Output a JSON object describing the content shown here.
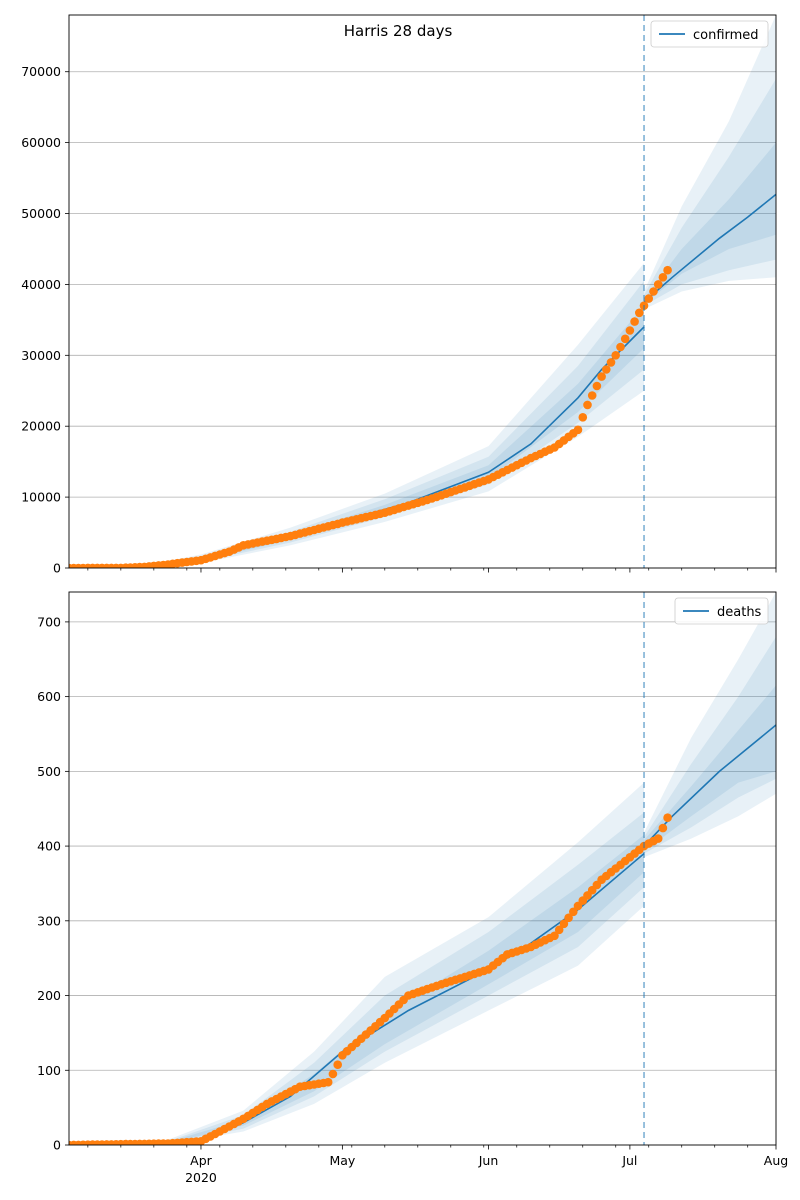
{
  "figure": {
    "title": "Harris 28 days"
  },
  "colors": {
    "model_line": "#1f77b4",
    "band": "#1f77b4",
    "observed": "#ff7f0e",
    "grid": "#b0b0b0",
    "vline": "#1f77b4"
  },
  "x_axis": {
    "date_start": "2020-03-04",
    "date_end": "2020-08-01",
    "tick_labels": [
      {
        "date": "2020-04-01",
        "label": "Apr",
        "sublabel": "2020"
      },
      {
        "date": "2020-05-01",
        "label": "May",
        "sublabel": ""
      },
      {
        "date": "2020-06-01",
        "label": "Jun",
        "sublabel": ""
      },
      {
        "date": "2020-07-01",
        "label": "Jul",
        "sublabel": ""
      },
      {
        "date": "2020-08-01",
        "label": "Aug",
        "sublabel": ""
      }
    ],
    "forecast_start_date": "2020-07-04"
  },
  "chart_data": [
    {
      "type": "line",
      "title": "Harris 28 days",
      "legend": "top-right",
      "grid": "y",
      "ylim": [
        0,
        78000
      ],
      "yticks": [
        0,
        10000,
        20000,
        30000,
        40000,
        50000,
        60000,
        70000
      ],
      "series": [
        {
          "name": "confirmed",
          "kind": "model",
          "points": [
            [
              "2020-03-04",
              0
            ],
            [
              "2020-03-20",
              200
            ],
            [
              "2020-03-25",
              500
            ],
            [
              "2020-04-01",
              1200
            ],
            [
              "2020-04-10",
              2800
            ],
            [
              "2020-04-20",
              4300
            ],
            [
              "2020-05-01",
              6600
            ],
            [
              "2020-05-15",
              9200
            ],
            [
              "2020-06-01",
              13500
            ],
            [
              "2020-06-10",
              17500
            ],
            [
              "2020-06-20",
              24000
            ],
            [
              "2020-06-25",
              28000
            ],
            [
              "2020-07-04",
              34000
            ]
          ],
          "band_points": [
            [
              "2020-03-04",
              0,
              0,
              0,
              0,
              0,
              0
            ],
            [
              "2020-03-20",
              100,
              150,
              180,
              230,
              280,
              350
            ],
            [
              "2020-04-01",
              700,
              900,
              1050,
              1350,
              1550,
              1900
            ],
            [
              "2020-04-20",
              3200,
              3600,
              3950,
              4700,
              5100,
              5700
            ],
            [
              "2020-05-10",
              6500,
              7200,
              7700,
              8900,
              9700,
              10500
            ],
            [
              "2020-06-01",
              10800,
              11800,
              12600,
              14500,
              15700,
              17200
            ],
            [
              "2020-06-20",
              18500,
              20500,
              22000,
              26000,
              28500,
              31500
            ],
            [
              "2020-07-04",
              25000,
              28000,
              31000,
              37000,
              40500,
              43000
            ]
          ]
        },
        {
          "name": "",
          "kind": "forecast",
          "points": [
            [
              "2020-07-04",
              37500
            ],
            [
              "2020-07-10",
              41000
            ],
            [
              "2020-07-20",
              46500
            ],
            [
              "2020-07-26",
              49500
            ],
            [
              "2020-08-01",
              52700
            ]
          ],
          "band_points": [
            [
              "2020-07-04",
              36500,
              37000,
              37200,
              38000,
              38500,
              39000
            ],
            [
              "2020-07-12",
              39000,
              40000,
              41500,
              45000,
              48000,
              51000
            ],
            [
              "2020-07-22",
              40500,
              42000,
              45000,
              52000,
              58000,
              63000
            ],
            [
              "2020-08-01",
              41000,
              43500,
              47000,
              60000,
              69000,
              78000
            ]
          ]
        },
        {
          "name": "",
          "kind": "observed",
          "points": [
            [
              "2020-03-04",
              0
            ],
            [
              "2020-03-15",
              20
            ],
            [
              "2020-03-20",
              150
            ],
            [
              "2020-03-25",
              500
            ],
            [
              "2020-04-01",
              1100
            ],
            [
              "2020-04-07",
              2300
            ],
            [
              "2020-04-10",
              3200
            ],
            [
              "2020-04-20",
              4500
            ],
            [
              "2020-05-01",
              6400
            ],
            [
              "2020-05-10",
              7800
            ],
            [
              "2020-05-20",
              9800
            ],
            [
              "2020-06-01",
              12500
            ],
            [
              "2020-06-10",
              15500
            ],
            [
              "2020-06-15",
              17000
            ],
            [
              "2020-06-20",
              19500
            ],
            [
              "2020-06-22",
              23000
            ],
            [
              "2020-06-25",
              27000
            ],
            [
              "2020-06-28",
              30000
            ],
            [
              "2020-07-01",
              33500
            ],
            [
              "2020-07-03",
              36000
            ],
            [
              "2020-07-06",
              39000
            ],
            [
              "2020-07-08",
              41000
            ],
            [
              "2020-07-09",
              42000
            ]
          ]
        }
      ]
    },
    {
      "type": "line",
      "title": "",
      "legend": "top-right",
      "grid": "y",
      "ylim": [
        0,
        740
      ],
      "yticks": [
        0,
        100,
        200,
        300,
        400,
        500,
        600,
        700
      ],
      "series": [
        {
          "name": "deaths",
          "kind": "model",
          "points": [
            [
              "2020-03-04",
              0
            ],
            [
              "2020-03-20",
              2
            ],
            [
              "2020-04-01",
              5
            ],
            [
              "2020-04-10",
              30
            ],
            [
              "2020-04-20",
              65
            ],
            [
              "2020-05-01",
              125
            ],
            [
              "2020-05-15",
              180
            ],
            [
              "2020-06-01",
              235
            ],
            [
              "2020-06-10",
              270
            ],
            [
              "2020-06-20",
              315
            ],
            [
              "2020-07-04",
              390
            ]
          ],
          "band_points": [
            [
              "2020-03-04",
              0,
              0,
              0,
              0,
              0,
              0
            ],
            [
              "2020-03-25",
              1,
              2,
              2,
              4,
              5,
              7
            ],
            [
              "2020-04-10",
              18,
              22,
              26,
              34,
              40,
              46
            ],
            [
              "2020-04-25",
              55,
              65,
              72,
              95,
              110,
              125
            ],
            [
              "2020-05-10",
              110,
              125,
              135,
              175,
              200,
              225
            ],
            [
              "2020-06-01",
              180,
              200,
              215,
              260,
              285,
              305
            ],
            [
              "2020-06-20",
              240,
              265,
              285,
              345,
              375,
              405
            ],
            [
              "2020-07-04",
              320,
              345,
              365,
              415,
              445,
              485
            ]
          ]
        },
        {
          "name": "",
          "kind": "forecast",
          "points": [
            [
              "2020-07-04",
              400
            ],
            [
              "2020-07-10",
              440
            ],
            [
              "2020-07-20",
              500
            ],
            [
              "2020-08-01",
              562
            ]
          ],
          "band_points": [
            [
              "2020-07-04",
              385,
              390,
              393,
              408,
              412,
              418
            ],
            [
              "2020-07-14",
              410,
              425,
              440,
              480,
              510,
              545
            ],
            [
              "2020-07-24",
              440,
              465,
              485,
              555,
              600,
              650
            ],
            [
              "2020-08-01",
              470,
              490,
              500,
              615,
              680,
              740
            ]
          ]
        },
        {
          "name": "",
          "kind": "observed",
          "points": [
            [
              "2020-03-04",
              0
            ],
            [
              "2020-03-25",
              2
            ],
            [
              "2020-04-01",
              5
            ],
            [
              "2020-04-05",
              18
            ],
            [
              "2020-04-10",
              35
            ],
            [
              "2020-04-15",
              55
            ],
            [
              "2020-04-22",
              78
            ],
            [
              "2020-04-28",
              84
            ],
            [
              "2020-04-29",
              95
            ],
            [
              "2020-05-01",
              120
            ],
            [
              "2020-05-10",
              170
            ],
            [
              "2020-05-15",
              200
            ],
            [
              "2020-05-22",
              215
            ],
            [
              "2020-06-01",
              235
            ],
            [
              "2020-06-05",
              255
            ],
            [
              "2020-06-10",
              265
            ],
            [
              "2020-06-15",
              280
            ],
            [
              "2020-06-20",
              320
            ],
            [
              "2020-06-25",
              355
            ],
            [
              "2020-07-01",
              385
            ],
            [
              "2020-07-04",
              400
            ],
            [
              "2020-07-07",
              410
            ],
            [
              "2020-07-09",
              438
            ]
          ]
        }
      ]
    }
  ]
}
